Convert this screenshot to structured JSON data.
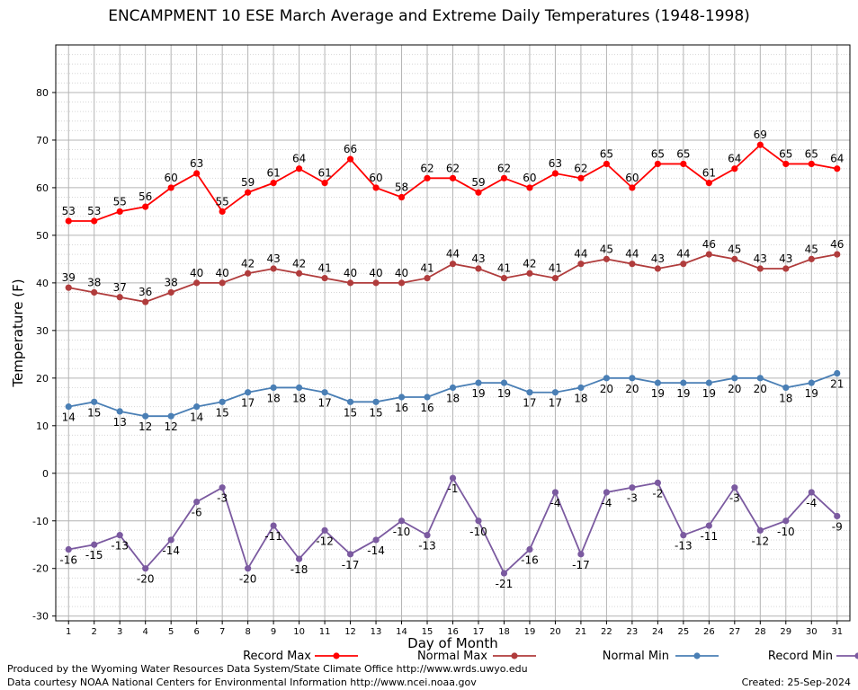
{
  "chart_data": {
    "type": "line",
    "title": "ENCAMPMENT 10 ESE March Average and Extreme Daily Temperatures (1948-1998)",
    "xlabel": "Day of Month",
    "ylabel": "Temperature (F)",
    "ylim": [
      -31,
      90
    ],
    "xlim": [
      0.5,
      31.5
    ],
    "yticks": [
      -30,
      -20,
      -10,
      0,
      10,
      20,
      30,
      40,
      50,
      60,
      70,
      80
    ],
    "x": [
      1,
      2,
      3,
      4,
      5,
      6,
      7,
      8,
      9,
      10,
      11,
      12,
      13,
      14,
      15,
      16,
      17,
      18,
      19,
      20,
      21,
      22,
      23,
      24,
      25,
      26,
      27,
      28,
      29,
      30,
      31
    ],
    "grid": true,
    "legend_position": "bottom",
    "series": [
      {
        "name": "Record Max",
        "color": "#ff0000",
        "label_pos": "above",
        "values": [
          53,
          53,
          55,
          56,
          60,
          63,
          55,
          59,
          61,
          64,
          61,
          66,
          60,
          58,
          62,
          62,
          59,
          62,
          60,
          63,
          62,
          65,
          60,
          65,
          65,
          61,
          64,
          69,
          65,
          65,
          64
        ]
      },
      {
        "name": "Normal Max",
        "color": "#b03c3c",
        "label_pos": "above",
        "values": [
          39,
          38,
          37,
          36,
          38,
          40,
          40,
          42,
          43,
          42,
          41,
          40,
          40,
          40,
          41,
          44,
          43,
          41,
          42,
          41,
          44,
          45,
          44,
          43,
          44,
          46,
          45,
          43,
          43,
          45,
          46
        ]
      },
      {
        "name": "Normal Min",
        "color": "#4a7fb5",
        "label_pos": "below",
        "values": [
          14,
          15,
          13,
          12,
          12,
          14,
          15,
          17,
          18,
          18,
          17,
          15,
          15,
          16,
          16,
          18,
          19,
          19,
          17,
          17,
          18,
          20,
          20,
          19,
          19,
          19,
          20,
          20,
          18,
          19,
          21
        ]
      },
      {
        "name": "Record Min",
        "color": "#7b5aa0",
        "label_pos": "below",
        "values": [
          -16,
          -15,
          -13,
          -20,
          -14,
          -6,
          -3,
          -20,
          -11,
          -18,
          -12,
          -17,
          -14,
          -10,
          -13,
          -1,
          -10,
          -21,
          -16,
          -4,
          -17,
          -4,
          -3,
          -2,
          -13,
          -11,
          -3,
          -12,
          -10,
          -4,
          -9
        ]
      }
    ]
  },
  "footer": {
    "credit_line1": "Produced by the Wyoming Water Resources Data System/State Climate Office http://www.wrds.uwyo.edu",
    "credit_line2": "Data courtesy NOAA National Centers for Environmental Information http://www.ncei.noaa.gov",
    "created": "Created: 25-Sep-2024"
  }
}
